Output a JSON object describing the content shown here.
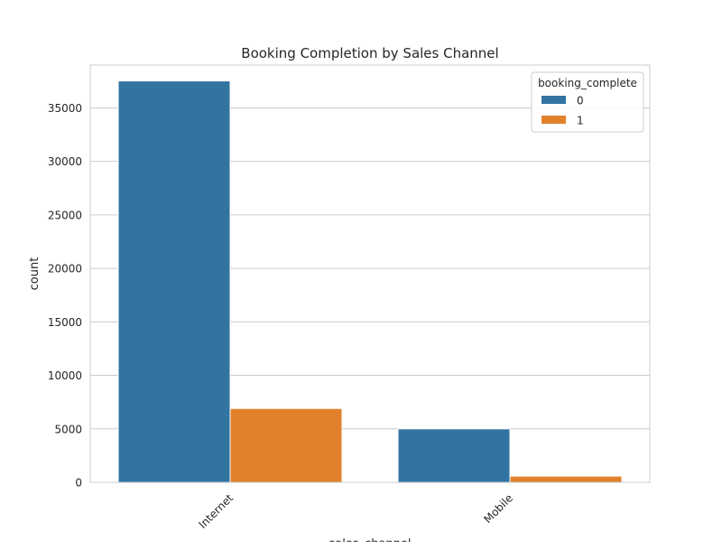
{
  "chart_data": {
    "type": "bar",
    "title": "Booking Completion by Sales Channel",
    "xlabel": "sales_channel",
    "ylabel": "count",
    "categories": [
      "Internet",
      "Mobile"
    ],
    "series": [
      {
        "name": "0",
        "color": "#3274a1",
        "values": [
          37513,
          4998
        ]
      },
      {
        "name": "1",
        "color": "#e1812c",
        "values": [
          6904,
          585
        ]
      }
    ],
    "ylim": [
      0,
      39000
    ],
    "yticks": [
      0,
      5000,
      10000,
      15000,
      20000,
      25000,
      30000,
      35000
    ],
    "grid": true,
    "legend": {
      "title": "booking_complete",
      "placement": "top-right"
    }
  }
}
